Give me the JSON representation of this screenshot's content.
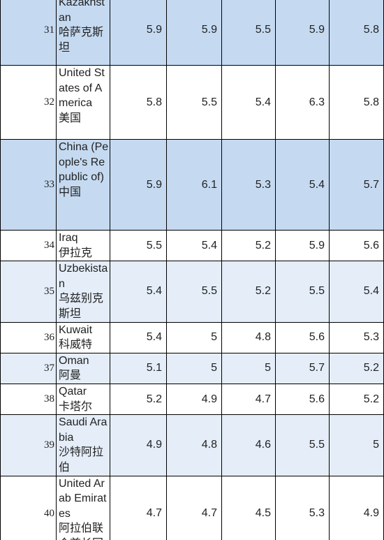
{
  "rows": [
    {
      "rank": "31",
      "country_en": "Kazakhstan",
      "country_zh": "哈萨克斯坦",
      "values": [
        "5.9",
        "5.9",
        "5.5",
        "5.9",
        "5.8"
      ]
    },
    {
      "rank": "32",
      "country_en": "United States of America",
      "country_zh": "美国",
      "values": [
        "5.8",
        "5.5",
        "5.4",
        "6.3",
        "5.8"
      ]
    },
    {
      "rank": "33",
      "country_en": "China (People's Republic of)",
      "country_zh": "中国",
      "values": [
        "5.9",
        "6.1",
        "5.3",
        "5.4",
        "5.7"
      ]
    },
    {
      "rank": "34",
      "country_en": "Iraq",
      "country_zh": "伊拉克",
      "values": [
        "5.5",
        "5.4",
        "5.2",
        "5.9",
        "5.6"
      ]
    },
    {
      "rank": "35",
      "country_en": "Uzbekistan",
      "country_zh": "乌兹别克斯坦",
      "values": [
        "5.4",
        "5.5",
        "5.2",
        "5.5",
        "5.4"
      ]
    },
    {
      "rank": "36",
      "country_en": "Kuwait",
      "country_zh": "科威特",
      "values": [
        "5.4",
        "5",
        "4.8",
        "5.6",
        "5.3"
      ]
    },
    {
      "rank": "37",
      "country_en": "Oman",
      "country_zh": "阿曼",
      "values": [
        "5.1",
        "5",
        "5",
        "5.7",
        "5.2"
      ]
    },
    {
      "rank": "38",
      "country_en": "Qatar",
      "country_zh": "卡塔尔",
      "values": [
        "5.2",
        "4.9",
        "4.7",
        "5.6",
        "5.2"
      ]
    },
    {
      "rank": "39",
      "country_en": "Saudi Arabia",
      "country_zh": "沙特阿拉伯",
      "values": [
        "4.9",
        "4.8",
        "4.6",
        "5.5",
        "5"
      ]
    },
    {
      "rank": "40",
      "country_en": "United Arab Emirates",
      "country_zh": "阿拉伯联合酋长国",
      "values": [
        "4.7",
        "4.7",
        "4.5",
        "5.3",
        "4.9"
      ]
    }
  ]
}
